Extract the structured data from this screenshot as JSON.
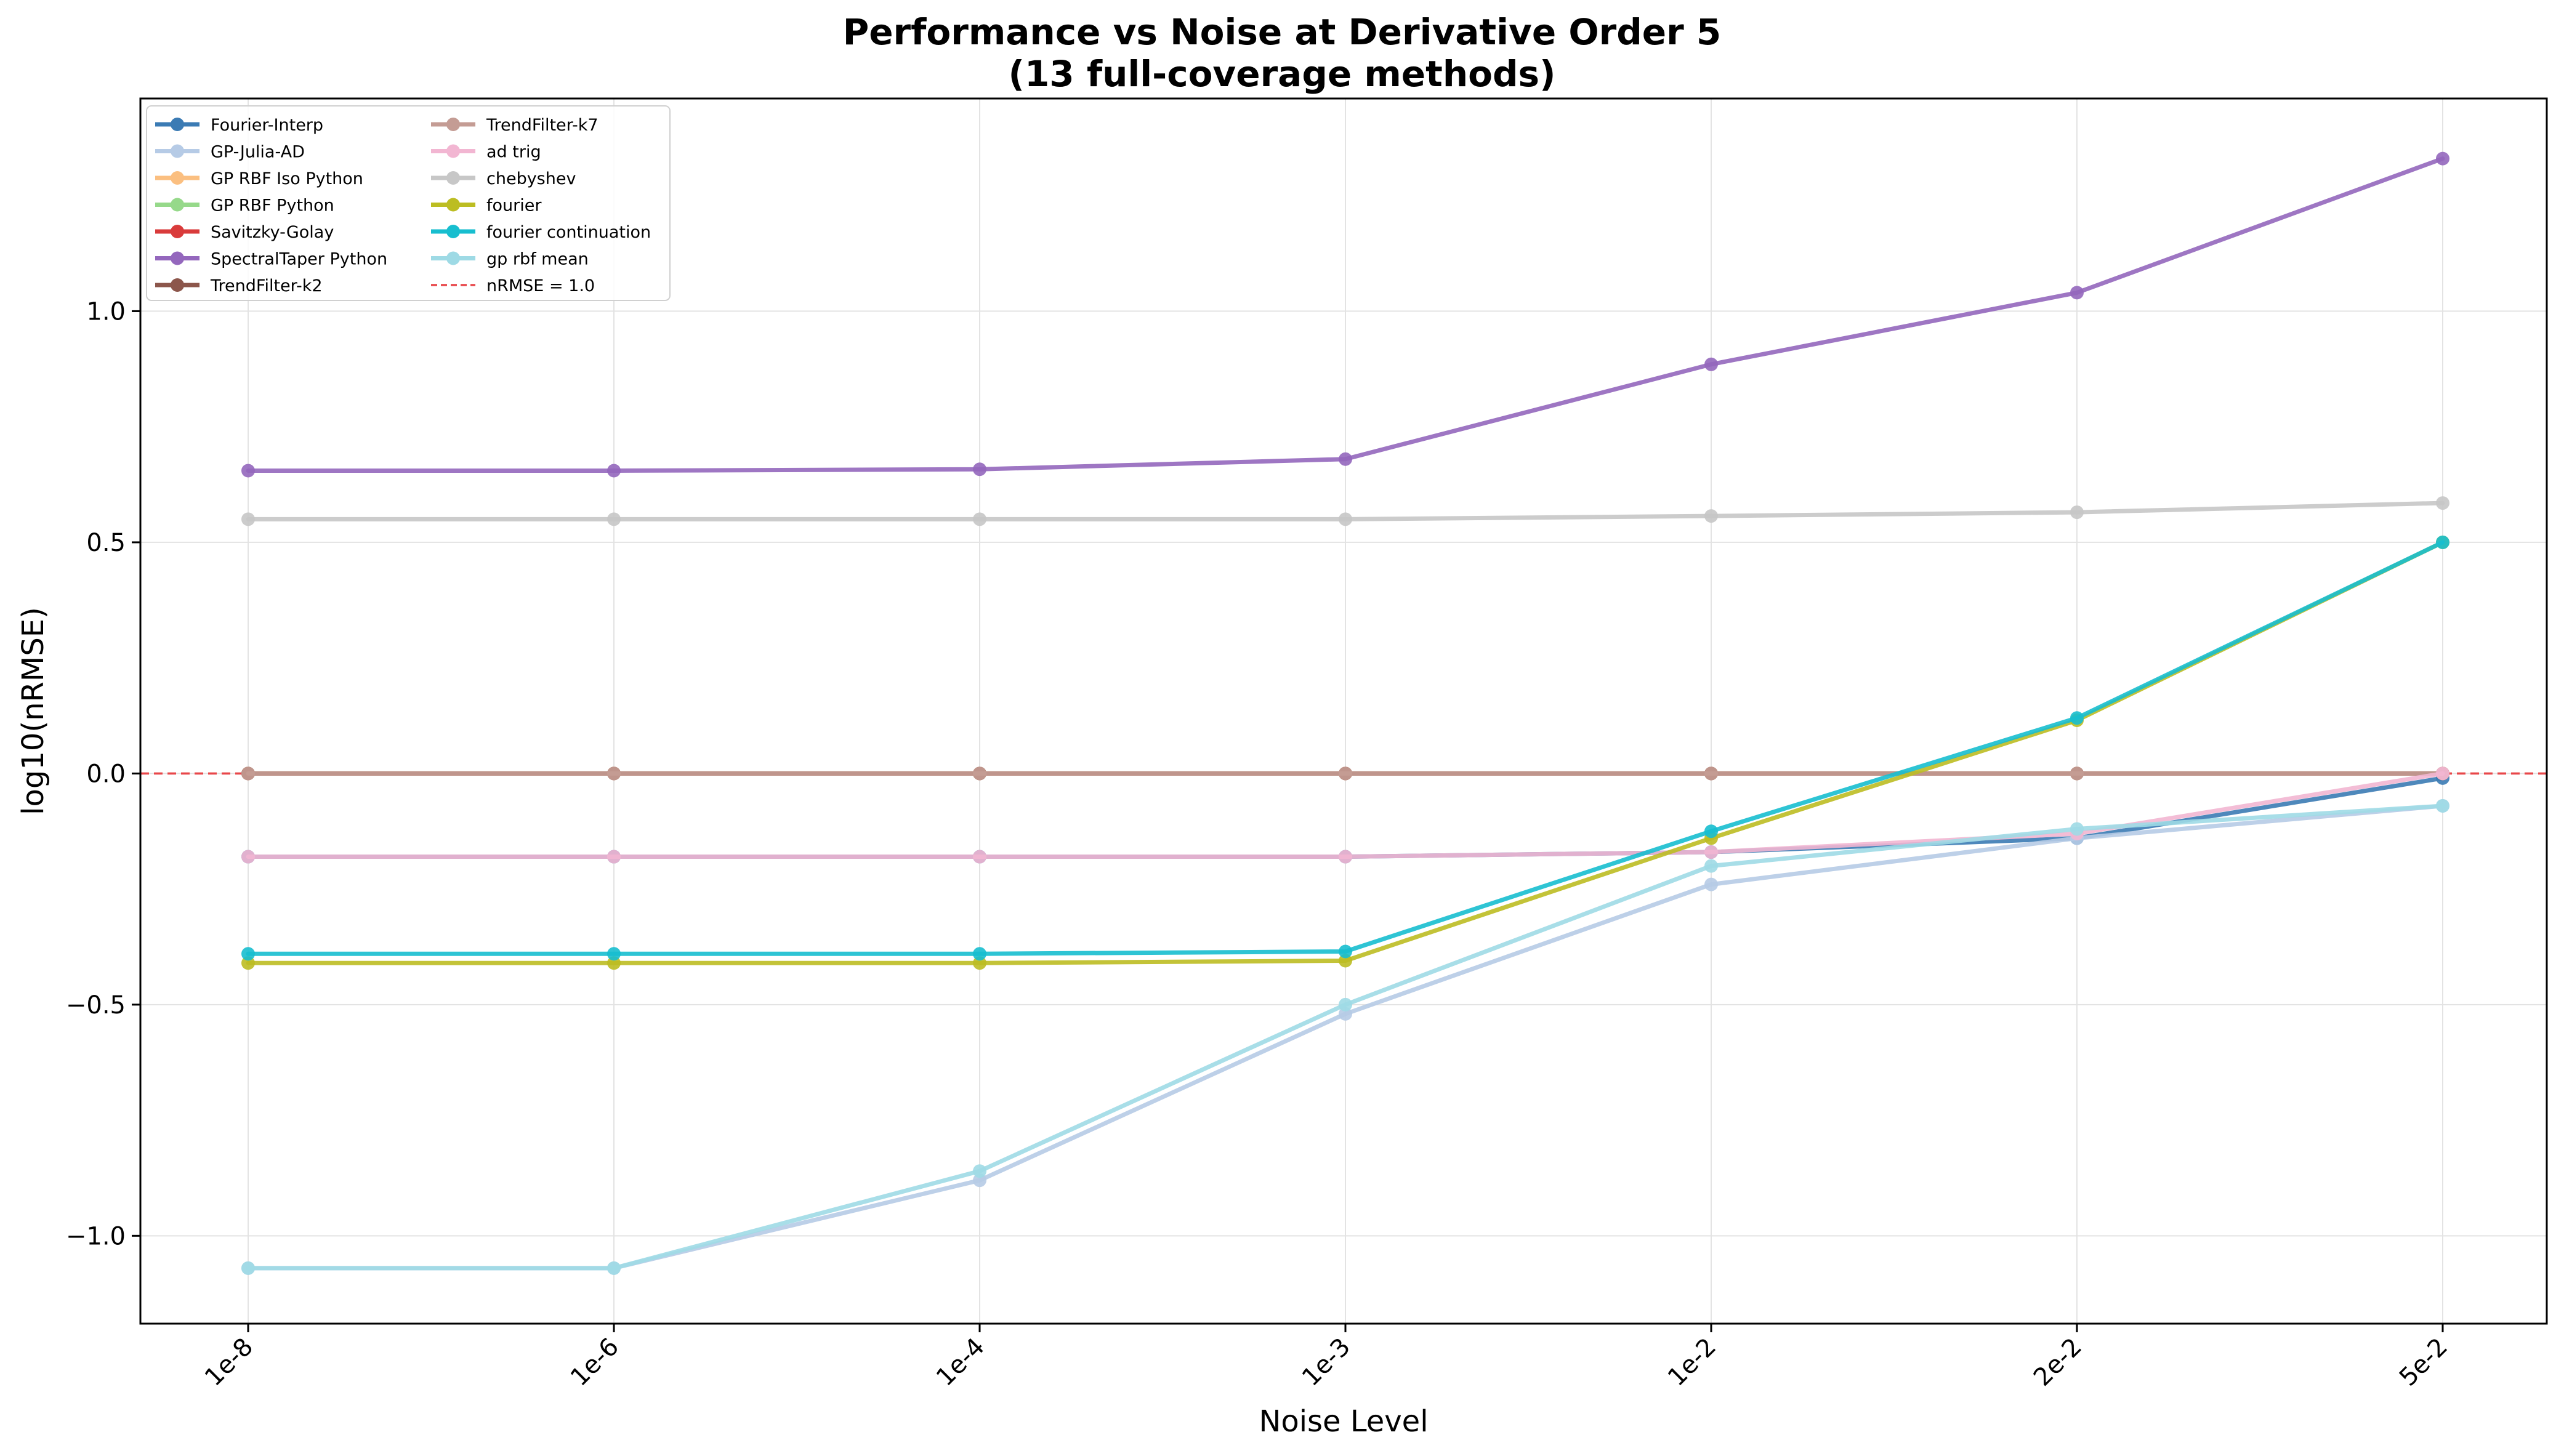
{
  "chart_data": {
    "type": "line",
    "title": "Performance vs Noise at Derivative Order 5",
    "subtitle": "(13 full-coverage methods)",
    "xlabel": "Noise Level",
    "ylabel": "log10(nRMSE)",
    "categories": [
      "1e-8",
      "1e-6",
      "1e-4",
      "1e-3",
      "1e-2",
      "2e-2",
      "5e-2"
    ],
    "ylim": [
      -1.19,
      1.46
    ],
    "yticks": [
      -1.0,
      -0.5,
      0.0,
      0.5,
      1.0
    ],
    "ytick_labels": [
      "−1.0",
      "−0.5",
      "0.0",
      "0.5",
      "1.0"
    ],
    "grid": true,
    "legend_position": "top-left",
    "reference_line": {
      "name": "nRMSE = 1.0",
      "y": 0.0,
      "color": "#e8474a",
      "style": "dashed"
    },
    "series": [
      {
        "name": "Fourier-Interp",
        "color": "#3b7bb4",
        "values": [
          -0.18,
          -0.18,
          -0.18,
          -0.18,
          -0.17,
          -0.14,
          -0.01
        ]
      },
      {
        "name": "GP-Julia-AD",
        "color": "#b6cbe6",
        "values": [
          -1.07,
          -1.07,
          -0.88,
          -0.52,
          -0.24,
          -0.14,
          -0.07
        ]
      },
      {
        "name": "GP RBF Iso Python",
        "color": "#fbbf80",
        "values": [
          0.0,
          0.0,
          0.0,
          0.0,
          0.0,
          0.0,
          0.0
        ]
      },
      {
        "name": "GP RBF Python",
        "color": "#96d98a",
        "values": [
          0.0,
          0.0,
          0.0,
          0.0,
          0.0,
          0.0,
          0.0
        ]
      },
      {
        "name": "Savitzky-Golay",
        "color": "#d93b3b",
        "values": [
          0.0,
          0.0,
          0.0,
          0.0,
          0.0,
          0.0,
          0.0
        ]
      },
      {
        "name": "SpectralTaper Python",
        "color": "#9467bd",
        "values": [
          0.655,
          0.655,
          0.658,
          0.68,
          0.885,
          1.04,
          1.33
        ]
      },
      {
        "name": "TrendFilter-k2",
        "color": "#8c564b",
        "values": [
          0.0,
          0.0,
          0.0,
          0.0,
          0.0,
          0.0,
          0.0
        ]
      },
      {
        "name": "TrendFilter-k7",
        "color": "#c49c94",
        "values": [
          0.0,
          0.0,
          0.0,
          0.0,
          0.0,
          0.0,
          0.0
        ]
      },
      {
        "name": "ad trig",
        "color": "#f2b6d2",
        "values": [
          -0.18,
          -0.18,
          -0.18,
          -0.18,
          -0.17,
          -0.13,
          0.0
        ]
      },
      {
        "name": "chebyshev",
        "color": "#c7c7c7",
        "values": [
          0.55,
          0.55,
          0.55,
          0.55,
          0.557,
          0.565,
          0.585
        ]
      },
      {
        "name": "fourier",
        "color": "#bcbd22",
        "values": [
          -0.41,
          -0.41,
          -0.41,
          -0.405,
          -0.14,
          0.115,
          0.5
        ]
      },
      {
        "name": "fourier continuation",
        "color": "#17becf",
        "values": [
          -0.39,
          -0.39,
          -0.39,
          -0.385,
          -0.125,
          0.12,
          0.5
        ]
      },
      {
        "name": "gp rbf mean",
        "color": "#9edae5",
        "values": [
          -1.07,
          -1.07,
          -0.86,
          -0.5,
          -0.2,
          -0.12,
          -0.07
        ]
      }
    ]
  }
}
